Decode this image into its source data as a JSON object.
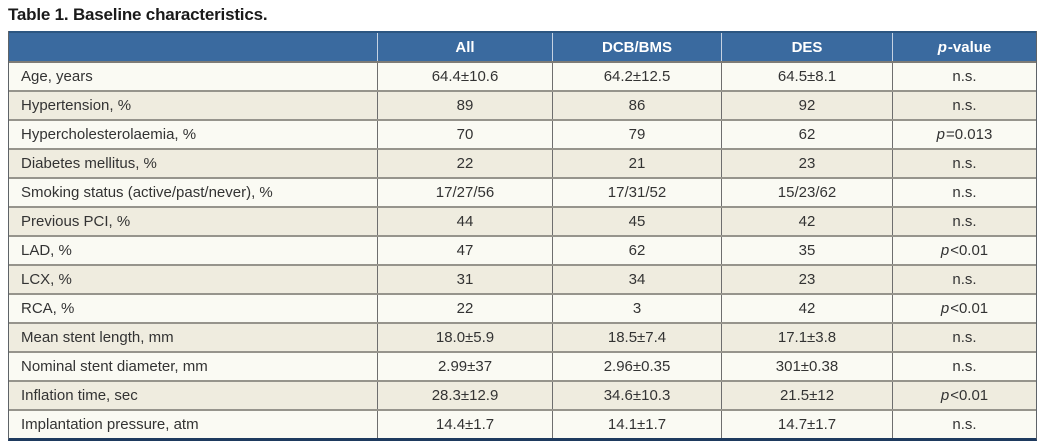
{
  "title": "Table 1. Baseline characteristics.",
  "colors": {
    "header_bg": "#3A6A9F",
    "header_top": "#2C5681",
    "bottom_bar": "#1E3A5E",
    "row_light": "#FAFAF3",
    "row_beige": "#EFECDF",
    "h_border": "#96948C",
    "v_border": "#6E6E6E",
    "title_color": "#1A1A1A",
    "cell_text": "#333333"
  },
  "table": {
    "columns": [
      "",
      "All",
      "DCB/BMS",
      "DES",
      "p-value"
    ],
    "rows": [
      {
        "label": "Age, years",
        "all": "64.4±10.6",
        "dcb_bms": "64.2±12.5",
        "des": "64.5±8.1",
        "p": "n.s."
      },
      {
        "label": "Hypertension, %",
        "all": "89",
        "dcb_bms": "86",
        "des": "92",
        "p": "n.s."
      },
      {
        "label": "Hypercholesterolaemia, %",
        "all": "70",
        "dcb_bms": "79",
        "des": "62",
        "p": "p=0.013"
      },
      {
        "label": "Diabetes mellitus, %",
        "all": "22",
        "dcb_bms": "21",
        "des": "23",
        "p": "n.s."
      },
      {
        "label": "Smoking status (active/past/never), %",
        "all": "17/27/56",
        "dcb_bms": "17/31/52",
        "des": "15/23/62",
        "p": "n.s."
      },
      {
        "label": "Previous PCI, %",
        "all": "44",
        "dcb_bms": "45",
        "des": "42",
        "p": "n.s."
      },
      {
        "label": "LAD, %",
        "all": "47",
        "dcb_bms": "62",
        "des": "35",
        "p": "p<0.01"
      },
      {
        "label": "LCX, %",
        "all": "31",
        "dcb_bms": "34",
        "des": "23",
        "p": "n.s."
      },
      {
        "label": "RCA, %",
        "all": "22",
        "dcb_bms": "3",
        "des": "42",
        "p": "p<0.01"
      },
      {
        "label": "Mean stent length, mm",
        "all": "18.0±5.9",
        "dcb_bms": "18.5±7.4",
        "des": "17.1±3.8",
        "p": "n.s."
      },
      {
        "label": "Nominal stent diameter, mm",
        "all": "2.99±37",
        "dcb_bms": "2.96±0.35",
        "des": "301±0.38",
        "p": "n.s."
      },
      {
        "label": "Inflation time, sec",
        "all": "28.3±12.9",
        "dcb_bms": "34.6±10.3",
        "des": "21.5±12",
        "p": "p<0.01"
      },
      {
        "label": "Implantation pressure, atm",
        "all": "14.4±1.7",
        "dcb_bms": "14.1±1.7",
        "des": "14.7±1.7",
        "p": "n.s."
      }
    ]
  }
}
